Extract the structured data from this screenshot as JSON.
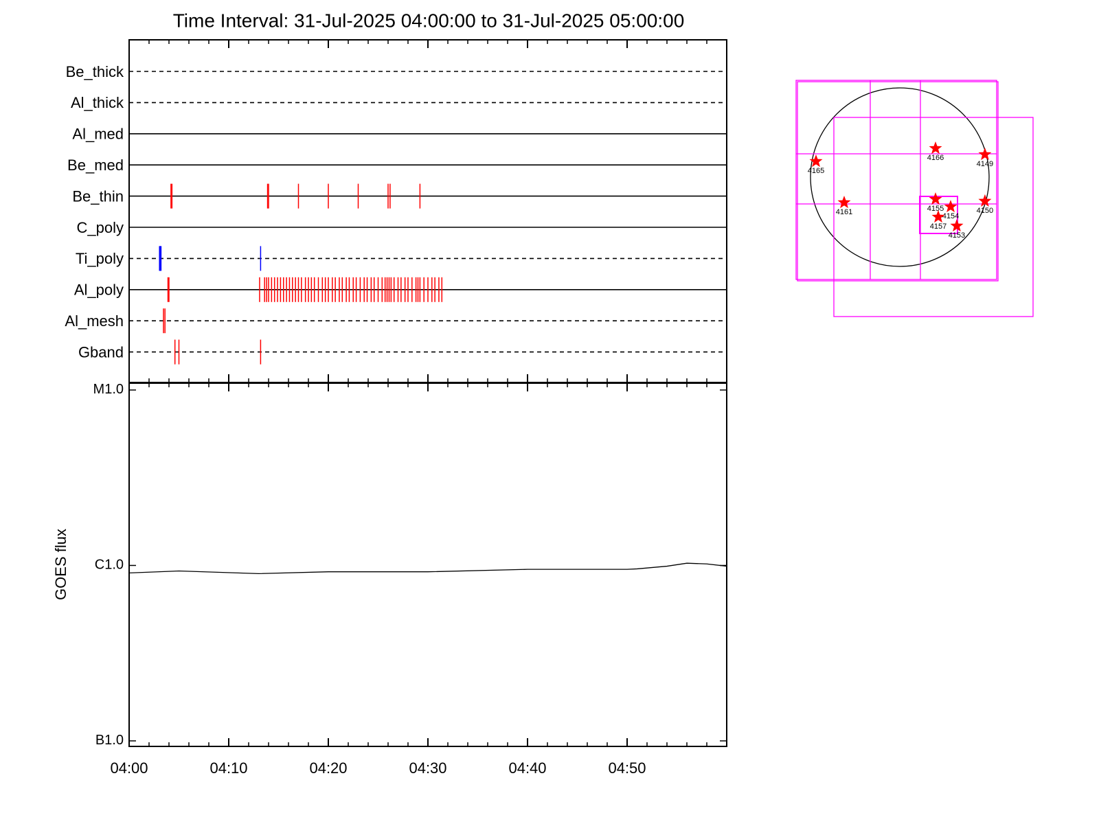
{
  "chart_data": [
    {
      "type": "event",
      "title": "Time Interval: 31-Jul-2025 04:00:00 to 31-Jul-2025 05:00:00",
      "categories": [
        "Be_thick",
        "Al_thick",
        "Al_med",
        "Be_med",
        "Be_thin",
        "C_poly",
        "Ti_poly",
        "Al_poly",
        "Al_mesh",
        "Gband"
      ],
      "line_styles": [
        "dashed",
        "dashed",
        "solid",
        "solid",
        "solid",
        "solid",
        "dashed",
        "solid",
        "dashed",
        "dashed"
      ],
      "event_colors": [
        "#ff0000",
        "#ff0000",
        "#ff0000",
        "#ff0000",
        "#ff0000",
        "#ff0000",
        "#0000ff",
        "#ff0000",
        "#ff0000",
        "#ff0000"
      ],
      "events": [
        [],
        [],
        [],
        [],
        [
          4.2,
          4.3,
          13.9,
          14.0,
          17.0,
          20.0,
          23.0,
          26.0,
          26.2,
          29.2
        ],
        [],
        [
          3.05,
          3.1,
          3.15,
          3.2,
          13.2
        ],
        [
          3.9,
          4.0,
          13.1,
          13.6,
          13.8,
          14.0,
          14.3,
          14.6,
          14.9,
          15.2,
          15.5,
          15.8,
          16.1,
          16.4,
          16.7,
          17.0,
          17.3,
          17.7,
          18.0,
          18.3,
          18.6,
          19.0,
          19.4,
          19.7,
          20.0,
          20.4,
          20.7,
          21.1,
          21.4,
          21.8,
          22.1,
          22.5,
          22.8,
          23.2,
          23.6,
          23.9,
          24.3,
          24.6,
          25.0,
          25.4,
          25.7,
          25.9,
          26.1,
          26.3,
          26.6,
          27.0,
          27.3,
          27.7,
          28.0,
          28.4,
          28.8,
          29.0,
          29.2,
          29.6,
          30.0,
          30.4,
          30.7,
          31.1,
          31.4
        ],
        [
          3.45,
          3.6
        ],
        [
          4.6,
          5.0,
          13.2
        ]
      ]
    },
    {
      "type": "line",
      "y_label": "GOES flux",
      "log_scale": true,
      "color": "#000000",
      "x": [
        0,
        5,
        13,
        20,
        30,
        40,
        50,
        51,
        54,
        56,
        58,
        60
      ],
      "values": [
        9.06e-07,
        9.3e-07,
        8.98e-07,
        9.2e-07,
        9.2e-07,
        9.5e-07,
        9.5e-07,
        9.56e-07,
        9.9e-07,
        1.03e-06,
        1.02e-06,
        9.9e-07
      ],
      "xlim": [
        0,
        60
      ],
      "xticks": [
        {
          "value": 0,
          "label": "04:00"
        },
        {
          "value": 10,
          "label": "04:10"
        },
        {
          "value": 20,
          "label": "04:20"
        },
        {
          "value": 30,
          "label": "04:30"
        },
        {
          "value": 40,
          "label": "04:40"
        },
        {
          "value": 50,
          "label": "04:50"
        }
      ],
      "minor_xticks": [
        2,
        4,
        6,
        8,
        12,
        14,
        16,
        18,
        22,
        24,
        26,
        28,
        32,
        34,
        36,
        38,
        42,
        44,
        46,
        48,
        52,
        54,
        56,
        58
      ],
      "ylim": [
        9.3e-08,
        1.094e-05
      ],
      "yticks": [
        {
          "value": 1e-07,
          "label": "B1.0"
        },
        {
          "value": 1e-06,
          "label": "C1.0"
        },
        {
          "value": 1e-05,
          "label": "M1.0"
        }
      ]
    },
    {
      "type": "scatter",
      "color": "#ff0000",
      "xlim": [
        -1100,
        1100
      ],
      "ylim": [
        -1100,
        1100
      ],
      "x": [
        -887,
        378,
        901,
        -589,
        378,
        538,
        901,
        407,
        603
      ],
      "values": [
        167,
        305,
        240,
        -269,
        -233,
        -313,
        -254,
        -422,
        -516
      ],
      "point_labels": [
        "4165",
        "4166",
        "4149",
        "4161",
        "4155",
        "4154",
        "4150",
        "4157",
        "4153"
      ]
    }
  ]
}
